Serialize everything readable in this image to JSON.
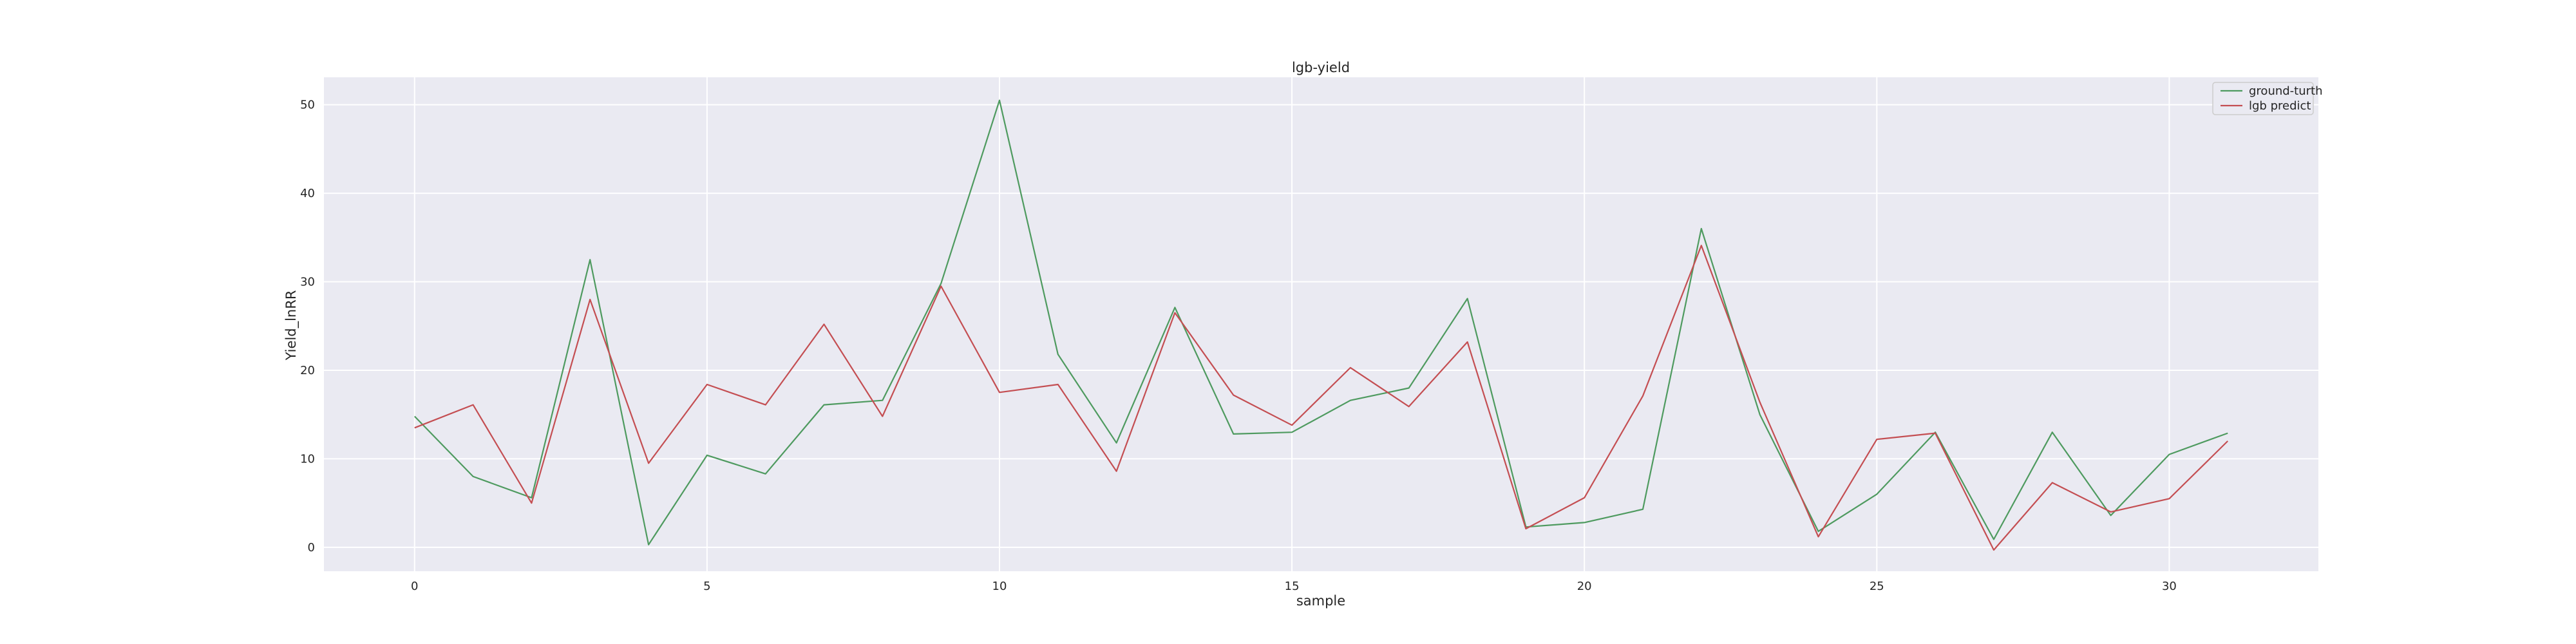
{
  "chart_data": {
    "type": "line",
    "title": "lgb-yield",
    "xlabel": "sample",
    "ylabel": "Yield_lnRR",
    "xlim": [
      -1.55,
      32.55
    ],
    "ylim": [
      -2.7,
      53.1
    ],
    "xticks": [
      0,
      5,
      10,
      15,
      20,
      25,
      30
    ],
    "yticks": [
      0,
      10,
      20,
      30,
      40,
      50
    ],
    "grid": true,
    "legend_position": "top-right",
    "x": [
      0,
      1,
      2,
      3,
      4,
      5,
      6,
      7,
      8,
      9,
      10,
      11,
      12,
      13,
      14,
      15,
      16,
      17,
      18,
      19,
      20,
      21,
      22,
      23,
      24,
      25,
      26,
      27,
      28,
      29,
      30,
      31
    ],
    "series": [
      {
        "name": "ground-turth",
        "color": "#4e9a5f",
        "values": [
          14.8,
          8.0,
          5.6,
          32.5,
          0.3,
          10.4,
          8.3,
          16.1,
          16.6,
          29.8,
          50.5,
          21.8,
          11.8,
          27.1,
          12.8,
          13.0,
          16.6,
          18.0,
          28.1,
          2.3,
          2.8,
          4.3,
          36.0,
          15.0,
          1.8,
          6.0,
          13.0,
          0.9,
          13.0,
          3.6,
          10.5,
          12.9
        ]
      },
      {
        "name": "lgb predict",
        "color": "#c44e52",
        "values": [
          13.5,
          16.1,
          5.0,
          28.0,
          9.5,
          18.4,
          16.1,
          25.2,
          14.8,
          29.5,
          17.5,
          18.4,
          8.6,
          26.5,
          17.2,
          13.8,
          20.3,
          15.9,
          23.2,
          2.1,
          5.6,
          17.1,
          34.1,
          16.4,
          1.2,
          12.2,
          12.9,
          -0.3,
          7.3,
          4.0,
          5.5,
          12.0
        ]
      }
    ]
  }
}
